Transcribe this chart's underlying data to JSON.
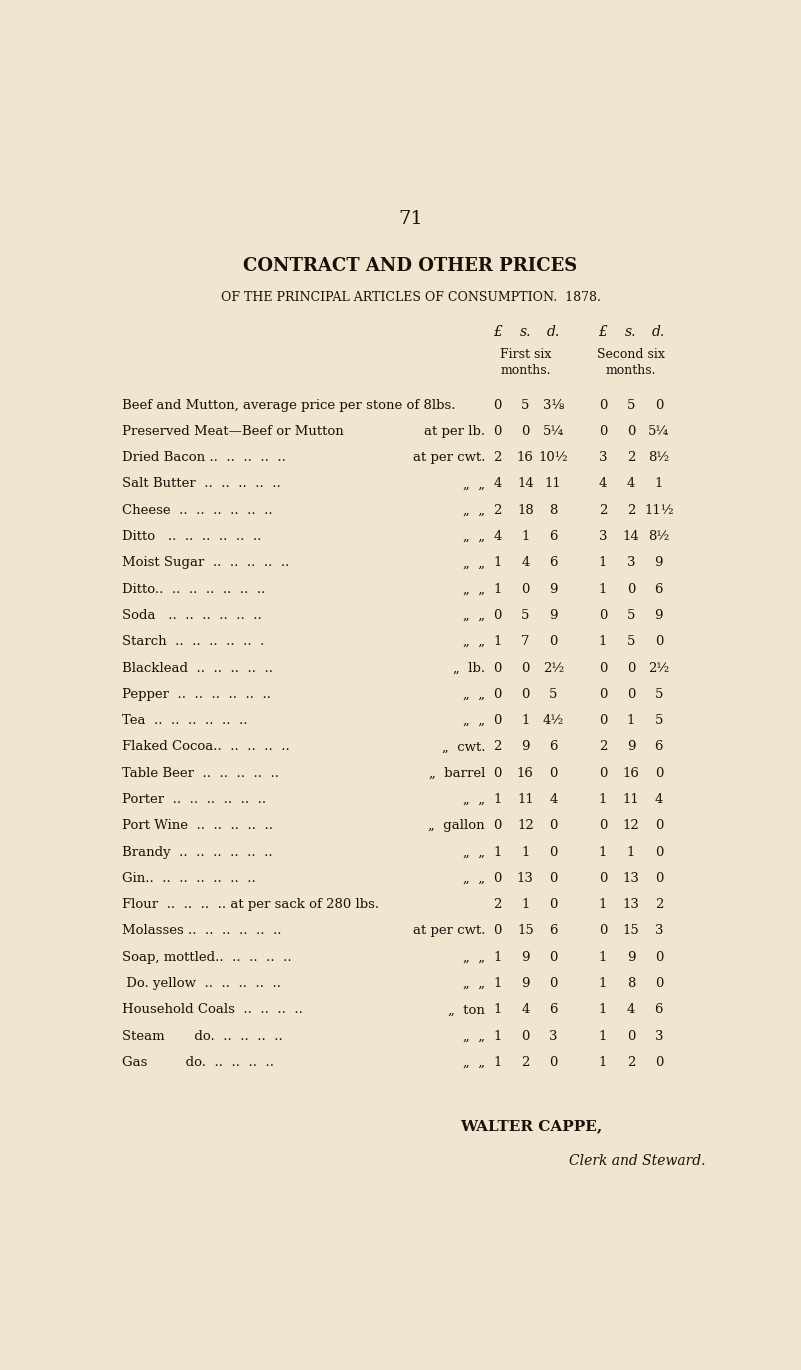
{
  "bg_color": "#f0e6d0",
  "page_number": "71",
  "title1": "CONTRACT AND OTHER PRICES",
  "title2": "OF THE PRINCIPAL ARTICLES OF CONSUMPTION.  1878.",
  "col_header1": "£  s.  d.",
  "col_header2": "£  s.  d.",
  "col_sub1": "First six\nmonths.",
  "col_sub2": "Second six\nmonths.",
  "rows": [
    {
      "item": "Beef and Mutton, average price per stone of 8lbs.",
      "unit": "",
      "p1": [
        "0",
        "5",
        "3⅛"
      ],
      "p2": [
        "0",
        "5",
        "0"
      ]
    },
    {
      "item": "Preserved Meat—Beef or Mutton",
      "unit": "at per lb.",
      "p1": [
        "0",
        "0",
        "5¼"
      ],
      "p2": [
        "0",
        "0",
        "5¼"
      ]
    },
    {
      "item": "Dried Bacon ..  ..  ..  ..  ..",
      "unit": "at per cwt.",
      "p1": [
        "2",
        "16",
        "10½"
      ],
      "p2": [
        "3",
        "2",
        "8½"
      ]
    },
    {
      "item": "Salt Butter  ..  ..  ..  ..  ..",
      "unit": "„  „",
      "p1": [
        "4",
        "14",
        "11"
      ],
      "p2": [
        "4",
        "4",
        "1"
      ]
    },
    {
      "item": "Cheese  ..  ..  ..  ..  ..  ..",
      "unit": "„  „",
      "p1": [
        "2",
        "18",
        "8"
      ],
      "p2": [
        "2",
        "2",
        "11½"
      ]
    },
    {
      "item": "Ditto   ..  ..  ..  ..  ..  ..",
      "unit": "„  „",
      "p1": [
        "4",
        "1",
        "6"
      ],
      "p2": [
        "3",
        "14",
        "8½"
      ]
    },
    {
      "item": "Moist Sugar  ..  ..  ..  ..  ..",
      "unit": "„  „",
      "p1": [
        "1",
        "4",
        "6"
      ],
      "p2": [
        "1",
        "3",
        "9"
      ]
    },
    {
      "item": "Ditto..  ..  ..  ..  ..  ..  ..",
      "unit": "„  „",
      "p1": [
        "1",
        "0",
        "9"
      ],
      "p2": [
        "1",
        "0",
        "6"
      ]
    },
    {
      "item": "Soda   ..  ..  ..  ..  ..  ..",
      "unit": "„  „",
      "p1": [
        "0",
        "5",
        "9"
      ],
      "p2": [
        "0",
        "5",
        "9"
      ]
    },
    {
      "item": "Starch  ..  ..  ..  ..  ..  .",
      "unit": "„  „",
      "p1": [
        "1",
        "7",
        "0"
      ],
      "p2": [
        "1",
        "5",
        "0"
      ]
    },
    {
      "item": "Blacklead  ..  ..  ..  ..  ..",
      "unit": "„  lb.",
      "p1": [
        "0",
        "0",
        "2½"
      ],
      "p2": [
        "0",
        "0",
        "2½"
      ]
    },
    {
      "item": "Pepper  ..  ..  ..  ..  ..  ..",
      "unit": "„  „",
      "p1": [
        "0",
        "0",
        "5"
      ],
      "p2": [
        "0",
        "0",
        "5"
      ]
    },
    {
      "item": "Tea  ..  ..  ..  ..  ..  ..",
      "unit": "„  „",
      "p1": [
        "0",
        "1",
        "4½"
      ],
      "p2": [
        "0",
        "1",
        "5"
      ]
    },
    {
      "item": "Flaked Cocoa..  ..  ..  ..  ..",
      "unit": "„  cwt.",
      "p1": [
        "2",
        "9",
        "6"
      ],
      "p2": [
        "2",
        "9",
        "6"
      ]
    },
    {
      "item": "Table Beer  ..  ..  ..  ..  ..",
      "unit": "„  barrel",
      "p1": [
        "0",
        "16",
        "0"
      ],
      "p2": [
        "0",
        "16",
        "0"
      ]
    },
    {
      "item": "Porter  ..  ..  ..  ..  ..  ..",
      "unit": "„  „",
      "p1": [
        "1",
        "11",
        "4"
      ],
      "p2": [
        "1",
        "11",
        "4"
      ]
    },
    {
      "item": "Port Wine  ..  ..  ..  ..  ..",
      "unit": "„  gallon",
      "p1": [
        "0",
        "12",
        "0"
      ],
      "p2": [
        "0",
        "12",
        "0"
      ]
    },
    {
      "item": "Brandy  ..  ..  ..  ..  ..  ..",
      "unit": "„  „",
      "p1": [
        "1",
        "1",
        "0"
      ],
      "p2": [
        "1",
        "1",
        "0"
      ]
    },
    {
      "item": "Gin..  ..  ..  ..  ..  ..  ..",
      "unit": "„  „",
      "p1": [
        "0",
        "13",
        "0"
      ],
      "p2": [
        "0",
        "13",
        "0"
      ]
    },
    {
      "item": "Flour  ..  ..  ..  .. at per sack of 280 lbs.",
      "unit": "",
      "p1": [
        "2",
        "1",
        "0"
      ],
      "p2": [
        "1",
        "13",
        "2"
      ]
    },
    {
      "item": "Molasses ..  ..  ..  ..  ..  ..",
      "unit": "at per cwt.",
      "p1": [
        "0",
        "15",
        "6"
      ],
      "p2": [
        "0",
        "15",
        "3"
      ]
    },
    {
      "item": "Soap, mottled..  ..  ..  ..  ..",
      "unit": "„  „",
      "p1": [
        "1",
        "9",
        "0"
      ],
      "p2": [
        "1",
        "9",
        "0"
      ]
    },
    {
      "item": " Do. yellow  ..  ..  ..  ..  ..",
      "unit": "„  „",
      "p1": [
        "1",
        "9",
        "0"
      ],
      "p2": [
        "1",
        "8",
        "0"
      ]
    },
    {
      "item": "Household Coals  ..  ..  ..  ..",
      "unit": "„  ton",
      "p1": [
        "1",
        "4",
        "6"
      ],
      "p2": [
        "1",
        "4",
        "6"
      ]
    },
    {
      "item": "Steam       do.  ..  ..  ..  ..",
      "unit": "„  „",
      "p1": [
        "1",
        "0",
        "3"
      ],
      "p2": [
        "1",
        "0",
        "3"
      ]
    },
    {
      "item": "Gas         do.  ..  ..  ..  ..",
      "unit": "„  „",
      "p1": [
        "1",
        "2",
        "0"
      ],
      "p2": [
        "1",
        "2",
        "0"
      ]
    }
  ],
  "signature1": "WALTER CAPPE,",
  "signature2": "Clerk and Steward.",
  "text_color": "#1a1008"
}
